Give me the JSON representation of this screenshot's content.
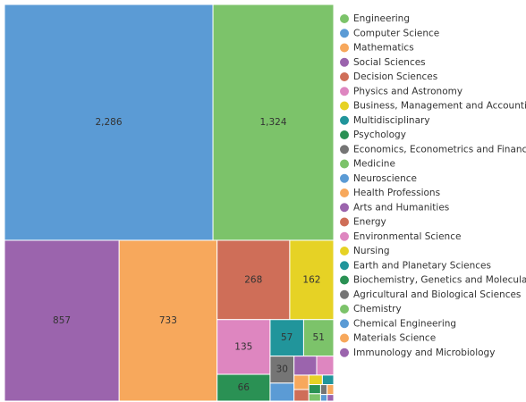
{
  "chart_data": {
    "type": "treemap",
    "categories": [
      "Engineering",
      "Computer Science",
      "Mathematics",
      "Social Sciences",
      "Decision Sciences",
      "Physics and Astronomy",
      "Business, Management and Accounting",
      "Multidisciplinary",
      "Psychology",
      "Economics, Econometrics and Finance",
      "Medicine",
      "Neuroscience",
      "Health Professions",
      "Arts and Humanities",
      "Energy",
      "Environmental Science",
      "Nursing",
      "Earth and Planetary Sciences",
      "Biochemistry, Genetics and Molecular Biology",
      "Agricultural and Biological Sciences",
      "Chemistry",
      "Chemical Engineering",
      "Materials Science",
      "Immunology and Microbiology"
    ],
    "values": [
      1324,
      2286,
      733,
      857,
      268,
      135,
      162,
      57,
      66,
      30,
      51,
      20,
      10,
      20,
      8,
      15,
      6,
      5,
      5,
      3,
      4,
      2,
      3,
      2
    ],
    "value_labels": [
      "1,324",
      "2,286",
      "733",
      "857",
      "268",
      "135",
      "162",
      "57",
      "66",
      "30",
      "51",
      null,
      null,
      null,
      null,
      null,
      null,
      null,
      null,
      null,
      null,
      null,
      null,
      null
    ],
    "colors": [
      "#7cc36a",
      "#5b9bd5",
      "#f7a85c",
      "#9b64ad",
      "#cf6e58",
      "#de86c0",
      "#e6d225",
      "#21959b",
      "#2a9154",
      "#757575",
      "#7cc36a",
      "#5b9bd5",
      "#f7a85c",
      "#9b64ad",
      "#cf6e58",
      "#de86c0",
      "#e6d225",
      "#21959b",
      "#2a9154",
      "#757575",
      "#7cc36a",
      "#5b9bd5",
      "#f7a85c",
      "#9b64ad"
    ]
  }
}
